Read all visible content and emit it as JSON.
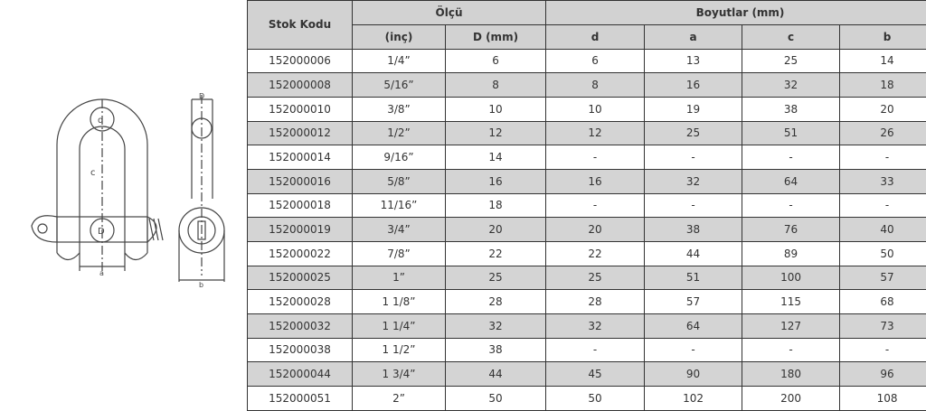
{
  "header": {
    "stock_code": "Stok Kodu",
    "measure_group": "Ölçü",
    "dimensions_group": "Boyutlar (mm)",
    "columns": [
      "(inç)",
      "D (mm)",
      "d",
      "a",
      "c",
      "b"
    ]
  },
  "drawing": {
    "labels": [
      "d",
      "c",
      "D",
      "a",
      "b"
    ]
  },
  "rows": [
    [
      "152000006",
      "1/4”",
      "6",
      "6",
      "13",
      "25",
      "14"
    ],
    [
      "152000008",
      "5/16”",
      "8",
      "8",
      "16",
      "32",
      "18"
    ],
    [
      "152000010",
      "3/8”",
      "10",
      "10",
      "19",
      "38",
      "20"
    ],
    [
      "152000012",
      "1/2”",
      "12",
      "12",
      "25",
      "51",
      "26"
    ],
    [
      "152000014",
      "9/16”",
      "14",
      "-",
      "-",
      "-",
      "-"
    ],
    [
      "152000016",
      "5/8”",
      "16",
      "16",
      "32",
      "64",
      "33"
    ],
    [
      "152000018",
      "11/16”",
      "18",
      "-",
      "-",
      "-",
      "-"
    ],
    [
      "152000019",
      "3/4”",
      "20",
      "20",
      "38",
      "76",
      "40"
    ],
    [
      "152000022",
      "7/8”",
      "22",
      "22",
      "44",
      "89",
      "50"
    ],
    [
      "152000025",
      "1”",
      "25",
      "25",
      "51",
      "100",
      "57"
    ],
    [
      "152000028",
      "1 1/8”",
      "28",
      "28",
      "57",
      "115",
      "68"
    ],
    [
      "152000032",
      "1 1/4”",
      "32",
      "32",
      "64",
      "127",
      "73"
    ],
    [
      "152000038",
      "1 1/2”",
      "38",
      "-",
      "-",
      "-",
      "-"
    ],
    [
      "152000044",
      "1 3/4”",
      "44",
      "45",
      "90",
      "180",
      "96"
    ],
    [
      "152000051",
      "2”",
      "50",
      "50",
      "102",
      "200",
      "108"
    ]
  ]
}
